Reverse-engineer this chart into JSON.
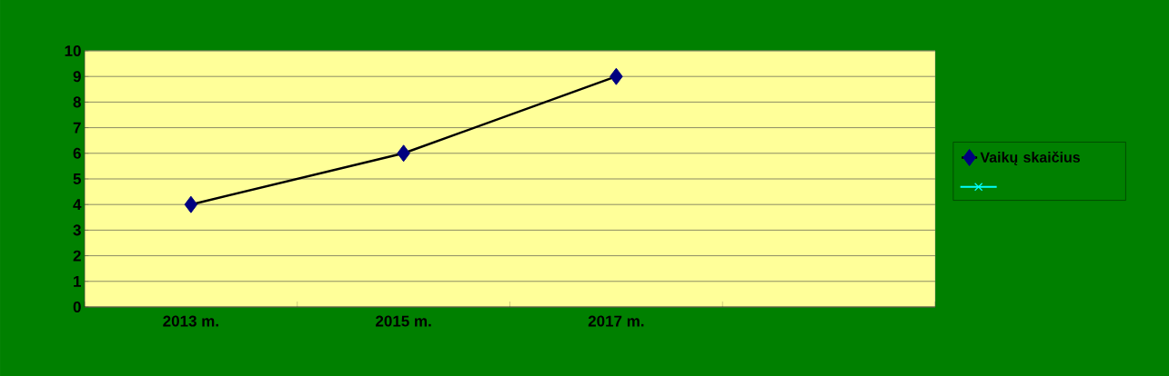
{
  "chart_data": {
    "type": "line",
    "categories": [
      "2013 m.",
      "2015 m.",
      "2017 m.",
      null
    ],
    "series": [
      {
        "name": "Vaikų skaičius",
        "color": "#000080",
        "values": [
          4,
          6,
          9,
          null
        ]
      }
    ],
    "ylim": [
      0,
      10
    ],
    "yticks": [
      0,
      1,
      2,
      3,
      4,
      5,
      6,
      7,
      8,
      9,
      10
    ],
    "grid": "y",
    "legend": "right",
    "marker": "diamond",
    "line_style": "solid"
  }
}
